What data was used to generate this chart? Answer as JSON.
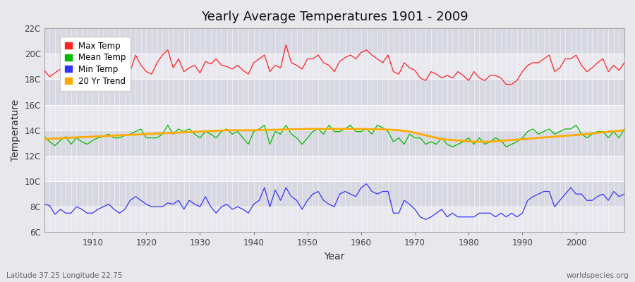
{
  "title": "Yearly Average Temperatures 1901 - 2009",
  "xlabel": "Year",
  "ylabel": "Temperature",
  "x_start": 1901,
  "x_end": 2009,
  "yticks": [
    6,
    8,
    10,
    12,
    14,
    16,
    18,
    20,
    22
  ],
  "ytick_labels": [
    "6C",
    "8C",
    "10C",
    "12C",
    "14C",
    "16C",
    "18C",
    "20C",
    "22C"
  ],
  "ylim": [
    6,
    22
  ],
  "xlim": [
    1901,
    2009
  ],
  "max_temp_color": "#ff2222",
  "mean_temp_color": "#00bb00",
  "min_temp_color": "#3333ff",
  "trend_color": "#ffaa00",
  "bg_color": "#e8e8ec",
  "plot_bg_color": "#e0e0e8",
  "band_color_light": "#e8e8ee",
  "band_color_dark": "#d8d8e2",
  "legend_labels": [
    "Max Temp",
    "Mean Temp",
    "Min Temp",
    "20 Yr Trend"
  ],
  "footer_left": "Latitude 37.25 Longitude 22.75",
  "footer_right": "worldspecies.org",
  "max_temps": [
    18.7,
    18.2,
    18.5,
    18.8,
    18.4,
    18.9,
    19.1,
    18.6,
    18.3,
    18.1,
    18.3,
    18.6,
    18.7,
    19.3,
    19.6,
    18.9,
    18.6,
    19.9,
    19.1,
    18.6,
    18.4,
    19.3,
    19.9,
    20.3,
    18.9,
    19.6,
    18.6,
    18.9,
    19.1,
    18.5,
    19.4,
    19.2,
    19.6,
    19.1,
    19.0,
    18.8,
    19.1,
    18.7,
    18.4,
    19.3,
    19.6,
    19.9,
    18.6,
    19.1,
    18.9,
    20.7,
    19.3,
    19.1,
    18.8,
    19.6,
    19.6,
    19.9,
    19.3,
    19.1,
    18.6,
    19.4,
    19.7,
    19.9,
    19.6,
    20.1,
    20.3,
    19.9,
    19.6,
    19.3,
    19.9,
    18.6,
    18.4,
    19.3,
    18.9,
    18.7,
    18.1,
    17.9,
    18.6,
    18.4,
    18.1,
    18.3,
    18.1,
    18.6,
    18.3,
    17.9,
    18.6,
    18.1,
    17.9,
    18.3,
    18.3,
    18.1,
    17.6,
    17.6,
    17.9,
    18.6,
    19.1,
    19.3,
    19.3,
    19.6,
    19.9,
    18.6,
    18.9,
    19.6,
    19.6,
    19.9,
    19.1,
    18.6,
    18.9,
    19.3,
    19.6,
    18.6,
    19.1,
    18.7,
    19.3
  ],
  "mean_temps": [
    13.5,
    13.1,
    12.8,
    13.2,
    13.5,
    12.9,
    13.4,
    13.1,
    12.9,
    13.2,
    13.4,
    13.5,
    13.7,
    13.4,
    13.4,
    13.6,
    13.7,
    13.9,
    14.1,
    13.4,
    13.4,
    13.4,
    13.7,
    14.4,
    13.7,
    14.1,
    13.9,
    14.1,
    13.7,
    13.4,
    13.9,
    13.7,
    13.4,
    13.9,
    14.1,
    13.7,
    13.9,
    13.4,
    12.9,
    13.9,
    14.1,
    14.4,
    12.9,
    13.9,
    13.7,
    14.4,
    13.7,
    13.4,
    12.9,
    13.4,
    13.9,
    14.1,
    13.7,
    14.4,
    13.9,
    13.9,
    14.1,
    14.4,
    13.9,
    13.9,
    14.1,
    13.7,
    14.4,
    14.2,
    13.9,
    13.1,
    13.4,
    12.9,
    13.7,
    13.4,
    13.4,
    12.9,
    13.1,
    12.9,
    13.4,
    12.9,
    12.7,
    12.9,
    13.1,
    13.4,
    12.9,
    13.4,
    12.9,
    13.1,
    13.4,
    13.2,
    12.7,
    12.9,
    13.1,
    13.4,
    13.9,
    14.1,
    13.7,
    13.9,
    14.1,
    13.7,
    13.9,
    14.1,
    14.1,
    14.4,
    13.7,
    13.4,
    13.7,
    13.9,
    13.9,
    13.4,
    13.9,
    13.4,
    14.1
  ],
  "min_temps": [
    8.2,
    8.1,
    7.4,
    7.8,
    7.5,
    7.5,
    8.0,
    7.8,
    7.5,
    7.5,
    7.8,
    8.0,
    8.2,
    7.8,
    7.5,
    7.8,
    8.5,
    8.8,
    8.5,
    8.2,
    8.0,
    8.0,
    8.0,
    8.3,
    8.2,
    8.5,
    7.8,
    8.5,
    8.2,
    8.0,
    8.8,
    8.0,
    7.5,
    8.0,
    8.2,
    7.8,
    8.0,
    7.8,
    7.5,
    8.2,
    8.5,
    9.5,
    8.0,
    9.3,
    8.5,
    9.5,
    8.8,
    8.5,
    7.8,
    8.5,
    9.0,
    9.2,
    8.5,
    8.2,
    8.0,
    9.0,
    9.2,
    9.0,
    8.8,
    9.5,
    9.8,
    9.2,
    9.0,
    9.2,
    9.2,
    7.5,
    7.5,
    8.5,
    8.2,
    7.8,
    7.2,
    7.0,
    7.2,
    7.5,
    7.8,
    7.2,
    7.5,
    7.2,
    7.2,
    7.2,
    7.2,
    7.5,
    7.5,
    7.5,
    7.2,
    7.5,
    7.2,
    7.5,
    7.2,
    7.5,
    8.5,
    8.8,
    9.0,
    9.2,
    9.2,
    8.0,
    8.5,
    9.0,
    9.5,
    9.0,
    9.0,
    8.5,
    8.5,
    8.8,
    9.0,
    8.5,
    9.2,
    8.8,
    9.0
  ],
  "trend_years": [
    1901,
    1905,
    1910,
    1915,
    1920,
    1925,
    1930,
    1935,
    1940,
    1945,
    1950,
    1955,
    1960,
    1965,
    1967,
    1969,
    1971,
    1973,
    1975,
    1978,
    1981,
    1984,
    1987,
    1990,
    1993,
    1996,
    1999,
    2002,
    2005,
    2009
  ],
  "trend_vals": [
    13.3,
    13.4,
    13.5,
    13.6,
    13.7,
    13.8,
    13.9,
    14.0,
    14.0,
    14.05,
    14.1,
    14.1,
    14.1,
    14.05,
    14.0,
    13.9,
    13.7,
    13.5,
    13.3,
    13.2,
    13.1,
    13.1,
    13.2,
    13.3,
    13.4,
    13.5,
    13.6,
    13.7,
    13.85,
    14.0
  ]
}
